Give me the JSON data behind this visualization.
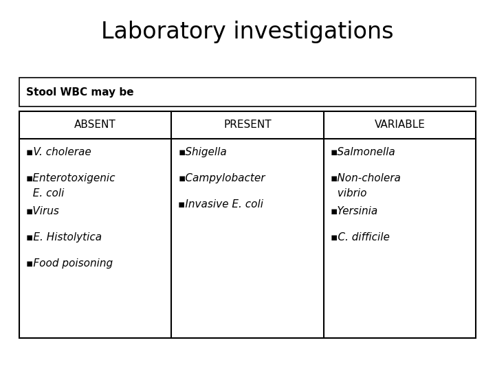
{
  "title": "Laboratory investigations",
  "title_fontsize": 24,
  "subtitle": "Stool WBC may be",
  "subtitle_fontsize": 11,
  "headers": [
    "ABSENT",
    "PRESENT",
    "VARIABLE"
  ],
  "header_fontsize": 11,
  "col1": [
    "▪V. cholerae",
    "▪Enterotoxigenic",
    "  E. coli",
    "▪Virus",
    "▪E. Histolytica",
    "▪Food poisoning"
  ],
  "col2": [
    "▪Shigella",
    "▪Campylobacter",
    "▪Invasive E. coli"
  ],
  "col3": [
    "▪Salmonella",
    "▪Non-cholera",
    "  vibrio",
    "▪Yersinia",
    "▪C. difficile"
  ],
  "body_fontsize": 11,
  "bg_color": "#ffffff",
  "text_color": "#000000",
  "border_color": "#000000",
  "fig_width": 7.2,
  "fig_height": 5.4,
  "dpi": 100
}
